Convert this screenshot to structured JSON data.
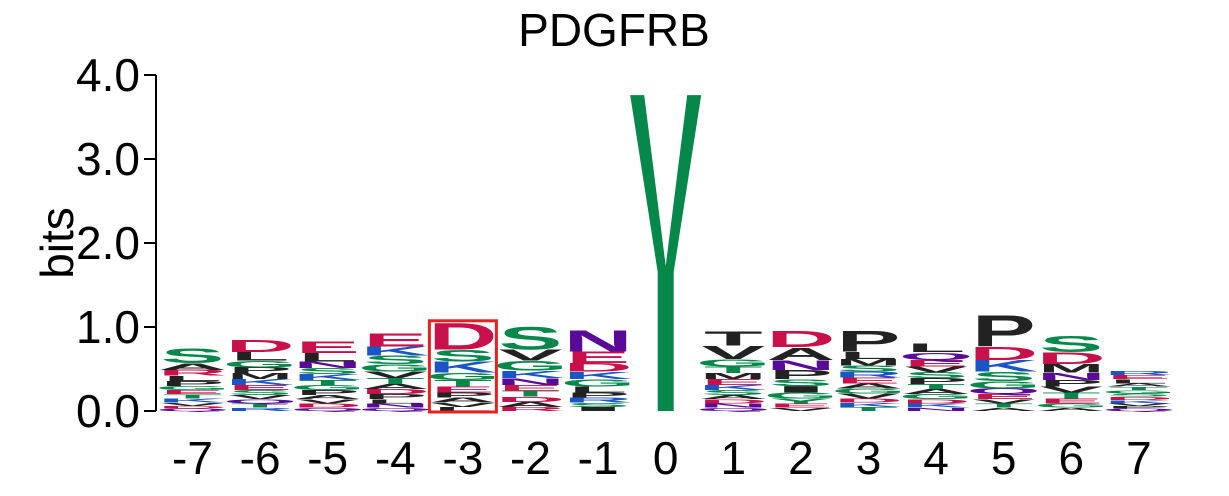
{
  "chart_data": {
    "type": "sequence-logo",
    "title": "PDGFRB",
    "ylabel": "bits",
    "ylim": [
      0,
      4
    ],
    "yticks": [
      "0.0",
      "1.0",
      "2.0",
      "3.0",
      "4.0"
    ],
    "ytick_values": [
      0,
      1,
      2,
      3,
      4
    ],
    "positions": [
      "-7",
      "-6",
      "-5",
      "-4",
      "-3",
      "-2",
      "-1",
      "0",
      "1",
      "2",
      "3",
      "4",
      "5",
      "6",
      "7"
    ],
    "highlighted_position": "-3",
    "highlight_color": "#e8201e",
    "colors": {
      "green": "#05884a",
      "red": "#c8104a",
      "black": "#222222",
      "blue": "#1a55c8",
      "purple": "#5a0a99"
    },
    "stacks": [
      [
        [
          "S",
          0.18,
          "green"
        ],
        [
          "A",
          0.08,
          "black"
        ],
        [
          "R",
          0.07,
          "red"
        ],
        [
          "P",
          0.06,
          "black"
        ],
        [
          "L",
          0.06,
          "black"
        ],
        [
          "K",
          0.05,
          "blue"
        ],
        [
          "T",
          0.05,
          "green"
        ],
        [
          "E",
          0.05,
          "red"
        ],
        [
          "G",
          0.05,
          "green"
        ],
        [
          "V",
          0.04,
          "black"
        ],
        [
          "Q",
          0.03,
          "purple"
        ],
        [
          "D",
          0.03,
          "red"
        ]
      ],
      [
        [
          "D",
          0.15,
          "red"
        ],
        [
          "L",
          0.1,
          "black"
        ],
        [
          "G",
          0.08,
          "green"
        ],
        [
          "K",
          0.07,
          "blue"
        ],
        [
          "M",
          0.07,
          "black"
        ],
        [
          "P",
          0.07,
          "black"
        ],
        [
          "S",
          0.06,
          "green"
        ],
        [
          "E",
          0.06,
          "red"
        ],
        [
          "T",
          0.05,
          "green"
        ],
        [
          "Q",
          0.05,
          "purple"
        ],
        [
          "V",
          0.05,
          "black"
        ],
        [
          "R",
          0.04,
          "blue"
        ]
      ],
      [
        [
          "E",
          0.14,
          "red"
        ],
        [
          "L",
          0.1,
          "black"
        ],
        [
          "N",
          0.08,
          "purple"
        ],
        [
          "K",
          0.07,
          "blue"
        ],
        [
          "S",
          0.07,
          "green"
        ],
        [
          "P",
          0.06,
          "black"
        ],
        [
          "G",
          0.06,
          "green"
        ],
        [
          "T",
          0.06,
          "green"
        ],
        [
          "D",
          0.05,
          "red"
        ],
        [
          "V",
          0.05,
          "black"
        ],
        [
          "A",
          0.05,
          "black"
        ],
        [
          "Q",
          0.04,
          "purple"
        ]
      ],
      [
        [
          "E",
          0.16,
          "red"
        ],
        [
          "K",
          0.11,
          "blue"
        ],
        [
          "S",
          0.1,
          "green"
        ],
        [
          "G",
          0.09,
          "green"
        ],
        [
          "V",
          0.08,
          "black"
        ],
        [
          "T",
          0.07,
          "green"
        ],
        [
          "P",
          0.06,
          "black"
        ],
        [
          "D",
          0.06,
          "red"
        ],
        [
          "A",
          0.06,
          "black"
        ],
        [
          "N",
          0.05,
          "purple"
        ],
        [
          "L",
          0.05,
          "black"
        ],
        [
          "Q",
          0.04,
          "purple"
        ]
      ],
      [
        [
          "D",
          0.32,
          "red"
        ],
        [
          "S",
          0.14,
          "green"
        ],
        [
          "K",
          0.13,
          "blue"
        ],
        [
          "G",
          0.09,
          "green"
        ],
        [
          "T",
          0.08,
          "green"
        ],
        [
          "E",
          0.07,
          "red"
        ],
        [
          "A",
          0.06,
          "black"
        ],
        [
          "P",
          0.06,
          "black"
        ],
        [
          "L",
          0.05,
          "black"
        ],
        [
          "V",
          0.05,
          "black"
        ]
      ],
      [
        [
          "S",
          0.28,
          "green"
        ],
        [
          "V",
          0.13,
          "black"
        ],
        [
          "G",
          0.12,
          "green"
        ],
        [
          "K",
          0.09,
          "blue"
        ],
        [
          "N",
          0.08,
          "purple"
        ],
        [
          "T",
          0.07,
          "green"
        ],
        [
          "E",
          0.07,
          "red"
        ],
        [
          "A",
          0.06,
          "black"
        ],
        [
          "D",
          0.06,
          "red"
        ],
        [
          "R",
          0.05,
          "red"
        ]
      ],
      [
        [
          "N",
          0.26,
          "purple"
        ],
        [
          "E",
          0.14,
          "red"
        ],
        [
          "D",
          0.1,
          "red"
        ],
        [
          "G",
          0.09,
          "green"
        ],
        [
          "K",
          0.09,
          "blue"
        ],
        [
          "L",
          0.07,
          "black"
        ],
        [
          "R",
          0.06,
          "blue"
        ],
        [
          "P",
          0.06,
          "black"
        ],
        [
          "I",
          0.05,
          "black"
        ],
        [
          "S",
          0.05,
          "green"
        ]
      ],
      [
        [
          "Y",
          3.76,
          "green"
        ]
      ],
      [
        [
          "T",
          0.17,
          "black"
        ],
        [
          "V",
          0.16,
          "black"
        ],
        [
          "G",
          0.09,
          "green"
        ],
        [
          "T",
          0.08,
          "green"
        ],
        [
          "E",
          0.07,
          "red"
        ],
        [
          "M",
          0.07,
          "black"
        ],
        [
          "S",
          0.06,
          "green"
        ],
        [
          "K",
          0.06,
          "blue"
        ],
        [
          "N",
          0.05,
          "purple"
        ],
        [
          "D",
          0.05,
          "red"
        ],
        [
          "A",
          0.05,
          "black"
        ],
        [
          "Q",
          0.04,
          "purple"
        ]
      ],
      [
        [
          "D",
          0.2,
          "red"
        ],
        [
          "A",
          0.15,
          "black"
        ],
        [
          "N",
          0.12,
          "purple"
        ],
        [
          "P",
          0.11,
          "black"
        ],
        [
          "I",
          0.08,
          "black"
        ],
        [
          "S",
          0.08,
          "green"
        ],
        [
          "G",
          0.07,
          "green"
        ],
        [
          "Y",
          0.06,
          "green"
        ],
        [
          "E",
          0.05,
          "red"
        ],
        [
          "V",
          0.04,
          "black"
        ]
      ],
      [
        [
          "P",
          0.25,
          "black"
        ],
        [
          "L",
          0.09,
          "black"
        ],
        [
          "M",
          0.08,
          "black"
        ],
        [
          "E",
          0.07,
          "red"
        ],
        [
          "R",
          0.07,
          "blue"
        ],
        [
          "S",
          0.07,
          "green"
        ],
        [
          "V",
          0.06,
          "black"
        ],
        [
          "G",
          0.06,
          "green"
        ],
        [
          "A",
          0.06,
          "black"
        ],
        [
          "T",
          0.05,
          "green"
        ],
        [
          "K",
          0.05,
          "blue"
        ],
        [
          "D",
          0.05,
          "red"
        ]
      ],
      [
        [
          "L",
          0.1,
          "black"
        ],
        [
          "Q",
          0.09,
          "purple"
        ],
        [
          "E",
          0.08,
          "red"
        ],
        [
          "P",
          0.07,
          "black"
        ],
        [
          "S",
          0.07,
          "green"
        ],
        [
          "V",
          0.07,
          "black"
        ],
        [
          "G",
          0.06,
          "green"
        ],
        [
          "A",
          0.06,
          "black"
        ],
        [
          "T",
          0.06,
          "green"
        ],
        [
          "K",
          0.05,
          "blue"
        ],
        [
          "D",
          0.05,
          "red"
        ],
        [
          "N",
          0.04,
          "purple"
        ]
      ],
      [
        [
          "P",
          0.38,
          "black"
        ],
        [
          "D",
          0.16,
          "red"
        ],
        [
          "K",
          0.14,
          "blue"
        ],
        [
          "S",
          0.11,
          "green"
        ],
        [
          "G",
          0.09,
          "green"
        ],
        [
          "Q",
          0.07,
          "purple"
        ],
        [
          "E",
          0.06,
          "red"
        ],
        [
          "T",
          0.05,
          "green"
        ],
        [
          "V",
          0.05,
          "black"
        ],
        [
          "A",
          0.04,
          "black"
        ]
      ],
      [
        [
          "S",
          0.2,
          "green"
        ],
        [
          "D",
          0.14,
          "red"
        ],
        [
          "M",
          0.1,
          "black"
        ],
        [
          "N",
          0.09,
          "purple"
        ],
        [
          "P",
          0.08,
          "black"
        ],
        [
          "T",
          0.07,
          "green"
        ],
        [
          "V",
          0.07,
          "black"
        ],
        [
          "E",
          0.06,
          "red"
        ],
        [
          "G",
          0.05,
          "green"
        ],
        [
          "A",
          0.04,
          "black"
        ]
      ],
      [
        [
          "L",
          0.05,
          "black"
        ],
        [
          "E",
          0.05,
          "red"
        ],
        [
          "R",
          0.05,
          "blue"
        ],
        [
          "K",
          0.04,
          "blue"
        ],
        [
          "D",
          0.04,
          "red"
        ],
        [
          "S",
          0.04,
          "green"
        ],
        [
          "G",
          0.04,
          "green"
        ],
        [
          "T",
          0.04,
          "green"
        ],
        [
          "A",
          0.04,
          "black"
        ],
        [
          "Q",
          0.03,
          "purple"
        ],
        [
          "P",
          0.03,
          "black"
        ],
        [
          "V",
          0.03,
          "black"
        ]
      ]
    ]
  }
}
